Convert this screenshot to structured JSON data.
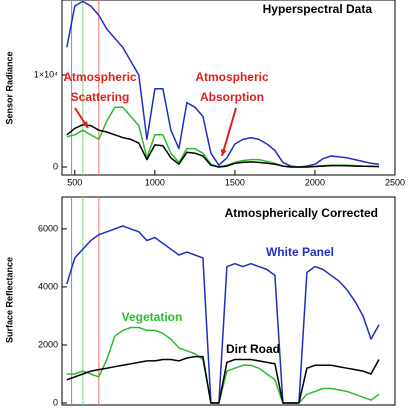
{
  "chart_data": [
    {
      "type": "line",
      "title": "Hyperspectral Data",
      "y_label": "Sensor Radiance",
      "x": [
        450,
        500,
        550,
        600,
        650,
        700,
        750,
        800,
        850,
        900,
        950,
        1000,
        1050,
        1100,
        1150,
        1200,
        1250,
        1300,
        1350,
        1400,
        1450,
        1500,
        1550,
        1600,
        1650,
        1700,
        1750,
        1800,
        1850,
        1900,
        1950,
        2000,
        2050,
        2100,
        2150,
        2200,
        2250,
        2300,
        2350,
        2400
      ],
      "series": [
        {
          "color": "#1f2fbf",
          "values": [
            13000,
            17500,
            18000,
            17500,
            16500,
            15000,
            14000,
            13000,
            11500,
            10000,
            3000,
            8500,
            8500,
            4000,
            2000,
            7000,
            6500,
            5500,
            1500,
            200,
            1000,
            2500,
            3000,
            3200,
            3000,
            2500,
            1800,
            500,
            100,
            0,
            100,
            300,
            900,
            1200,
            1100,
            1000,
            800,
            600,
            400,
            300
          ]
        },
        {
          "color": "#2dbb2d",
          "values": [
            3300,
            3500,
            4000,
            3500,
            3000,
            5000,
            6500,
            6500,
            5500,
            4500,
            1000,
            3500,
            3500,
            1500,
            500,
            2000,
            2000,
            1500,
            300,
            0,
            200,
            500,
            700,
            800,
            800,
            600,
            400,
            100,
            0,
            0,
            0,
            50,
            150,
            200,
            200,
            200,
            150,
            100,
            80,
            50
          ]
        },
        {
          "color": "#000000",
          "values": [
            3500,
            4200,
            4600,
            4500,
            4000,
            3800,
            3500,
            3200,
            3000,
            2600,
            800,
            2400,
            2300,
            1000,
            300,
            1600,
            1500,
            1200,
            200,
            0,
            100,
            400,
            500,
            550,
            500,
            400,
            300,
            100,
            0,
            0,
            0,
            50,
            100,
            150,
            150,
            130,
            100,
            80,
            60,
            40
          ]
        }
      ],
      "reference_lines": [
        {
          "value": 480,
          "color": "#6f8fe0"
        },
        {
          "value": 550,
          "color": "#7fd87f"
        },
        {
          "value": 650,
          "color": "#f07070"
        }
      ],
      "annotations": [
        {
          "text": [
            "Atmospheric",
            "Scattering"
          ],
          "color": "#e0201c"
        },
        {
          "text": [
            "Atmospheric",
            "Absorption"
          ],
          "color": "#e0201c"
        }
      ],
      "xlim": [
        420,
        2500
      ],
      "xticks": [
        500,
        1000,
        1500,
        2000,
        2500
      ],
      "ylim": [
        -870,
        18150
      ],
      "yticks": [
        0,
        {
          "value": 10000,
          "label": "1×10⁴"
        }
      ]
    },
    {
      "type": "line",
      "title": "Atmospherically Corrected",
      "y_label": "Surface Reflectance",
      "x": [
        450,
        500,
        550,
        600,
        650,
        700,
        750,
        800,
        850,
        900,
        950,
        1000,
        1050,
        1100,
        1150,
        1200,
        1250,
        1300,
        1350,
        1400,
        1450,
        1500,
        1550,
        1600,
        1650,
        1700,
        1750,
        1800,
        1850,
        1900,
        1950,
        2000,
        2050,
        2100,
        2150,
        2200,
        2250,
        2300,
        2350,
        2400
      ],
      "series": [
        {
          "name": "White Panel",
          "color": "#1f2fbf",
          "values": [
            4100,
            5000,
            5300,
            5600,
            5800,
            5900,
            6000,
            6100,
            6000,
            5900,
            5600,
            5700,
            5500,
            5300,
            5100,
            5200,
            5100,
            5000,
            0,
            0,
            4700,
            4800,
            4700,
            4800,
            4700,
            4600,
            4400,
            0,
            0,
            0,
            4500,
            4700,
            4600,
            4400,
            4200,
            3900,
            3500,
            3000,
            2200,
            2700
          ]
        },
        {
          "name": "Vegetation",
          "color": "#2dbb2d",
          "values": [
            1000,
            1000,
            1100,
            1000,
            900,
            1500,
            2300,
            2500,
            2600,
            2600,
            2500,
            2500,
            2400,
            2200,
            1900,
            1800,
            1700,
            1500,
            0,
            0,
            1100,
            1200,
            1300,
            1300,
            1200,
            1000,
            800,
            0,
            0,
            0,
            300,
            400,
            500,
            500,
            450,
            400,
            300,
            200,
            100,
            300
          ]
        },
        {
          "name": "Dirt Road",
          "color": "#000000",
          "values": [
            800,
            900,
            1000,
            1100,
            1150,
            1200,
            1250,
            1300,
            1350,
            1400,
            1450,
            1450,
            1500,
            1500,
            1450,
            1550,
            1600,
            1600,
            0,
            0,
            1400,
            1500,
            1500,
            1500,
            1450,
            1400,
            1350,
            0,
            0,
            0,
            1200,
            1300,
            1300,
            1300,
            1250,
            1200,
            1150,
            1100,
            1000,
            1500
          ]
        }
      ],
      "reference_lines": [
        {
          "value": 480,
          "color": "#6f8fe0"
        },
        {
          "value": 550,
          "color": "#7fd87f"
        },
        {
          "value": 650,
          "color": "#f07070"
        }
      ],
      "xlim": [
        420,
        2500
      ],
      "ylim": [
        -70,
        7100
      ],
      "yticks": [
        0,
        2000,
        4000,
        6000
      ]
    }
  ]
}
